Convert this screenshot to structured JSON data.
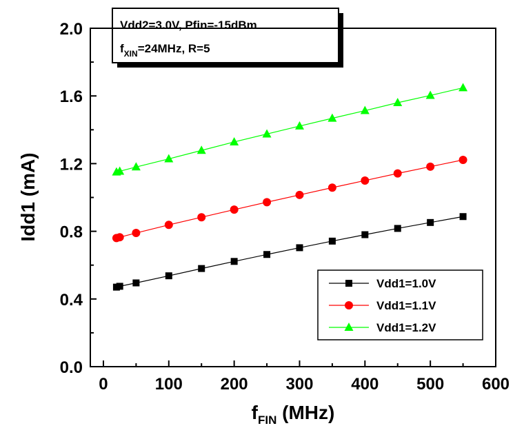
{
  "chart_data": {
    "type": "line",
    "xlabel": {
      "main": "f",
      "sub": "FIN",
      "suffix": " (MHz)"
    },
    "ylabel": "Idd1 (mA)",
    "xlim": [
      -20,
      600
    ],
    "ylim": [
      0.0,
      2.0
    ],
    "xticks": [
      0,
      100,
      200,
      300,
      400,
      500,
      600
    ],
    "yticks": [
      0.0,
      0.4,
      0.8,
      1.2,
      1.6,
      2.0
    ],
    "xtick_labels": [
      "0",
      "100",
      "200",
      "300",
      "400",
      "500",
      "600"
    ],
    "ytick_labels": [
      "0.0",
      "0.4",
      "0.8",
      "1.2",
      "1.6",
      "2.0"
    ],
    "grid": false,
    "legend_position": "bottom-right",
    "annotation": {
      "line1": "Vdd2=3.0V, Pfin=-15dBm",
      "line2_main": "f",
      "line2_sub": "XIN",
      "line2_rest": "=24MHz, R=5"
    },
    "x": [
      20,
      25,
      50,
      100,
      150,
      200,
      250,
      300,
      350,
      400,
      450,
      500,
      550
    ],
    "series": [
      {
        "name": "Vdd1=1.0V",
        "marker": "square",
        "color": "#000000",
        "values": [
          0.47,
          0.475,
          0.495,
          0.537,
          0.58,
          0.622,
          0.663,
          0.703,
          0.742,
          0.78,
          0.817,
          0.852,
          0.887
        ]
      },
      {
        "name": "Vdd1=1.1V",
        "marker": "circle",
        "color": "#ff0000",
        "values": [
          0.76,
          0.765,
          0.79,
          0.838,
          0.883,
          0.928,
          0.972,
          1.015,
          1.058,
          1.1,
          1.142,
          1.182,
          1.222
        ]
      },
      {
        "name": "Vdd1=1.2V",
        "marker": "triangle",
        "color": "#00ff00",
        "values": [
          1.15,
          1.155,
          1.18,
          1.228,
          1.278,
          1.328,
          1.375,
          1.422,
          1.468,
          1.513,
          1.56,
          1.603,
          1.648
        ]
      }
    ]
  }
}
